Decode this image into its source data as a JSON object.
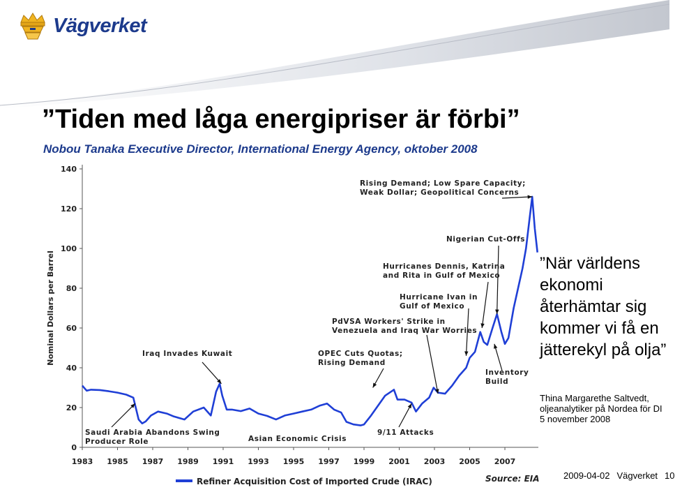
{
  "header": {
    "logo_text": "Vägverket",
    "logo_icon": "crown-shield-icon"
  },
  "slide": {
    "title": "”Tiden med låga energipriser är förbi”",
    "subtitle": "Nobou Tanaka Executive Director, International Energy Agency, oktober 2008",
    "quote": "”När världens ekonomi återhämtar sig kommer vi få en jätterekyl på olja”",
    "attribution": "Thina Margarethe Saltvedt, oljeanalytiker på Nordea för DI 5 november 2008"
  },
  "footer": {
    "date": "2009-04-02",
    "org": "Vägverket",
    "page": "10"
  },
  "colors": {
    "brand_blue": "#1c3a8c",
    "series_blue": "#1f3fd6",
    "header_gray": "#c9ccd3"
  },
  "chart_data": {
    "type": "line",
    "ylabel": "Nominal Dollars per Barrel",
    "ylim": [
      0,
      140
    ],
    "yticks": [
      0,
      20,
      40,
      60,
      80,
      100,
      120,
      140
    ],
    "xlim": [
      1983,
      2008.9
    ],
    "xticks": [
      1983,
      1985,
      1987,
      1989,
      1991,
      1993,
      1995,
      1997,
      1999,
      2001,
      2003,
      2005,
      2007
    ],
    "grid": false,
    "legend": "bottom",
    "source": "Source: EIA",
    "series": [
      {
        "name": "Refiner Acquisition Cost of Imported Crude (IRAC)",
        "color": "#1f3fd6",
        "x": [
          1983.0,
          1983.25,
          1983.5,
          1984.0,
          1984.5,
          1985.0,
          1985.5,
          1985.9,
          1986.2,
          1986.4,
          1986.6,
          1986.9,
          1987.3,
          1987.8,
          1988.2,
          1988.8,
          1989.3,
          1989.9,
          1990.3,
          1990.6,
          1990.8,
          1990.95,
          1991.2,
          1991.5,
          1992.0,
          1992.5,
          1993.0,
          1993.5,
          1994.0,
          1994.5,
          1995.0,
          1995.5,
          1996.0,
          1996.5,
          1996.9,
          1997.3,
          1997.7,
          1998.0,
          1998.4,
          1998.8,
          1999.0,
          1999.4,
          1999.8,
          2000.2,
          2000.7,
          2000.9,
          2001.3,
          2001.7,
          2001.95,
          2002.3,
          2002.7,
          2002.95,
          2003.2,
          2003.6,
          2004.0,
          2004.4,
          2004.8,
          2005.0,
          2005.3,
          2005.6,
          2005.8,
          2006.0,
          2006.3,
          2006.55,
          2006.8,
          2007.0,
          2007.2,
          2007.5,
          2007.8,
          2008.0,
          2008.2,
          2008.4,
          2008.55,
          2008.7,
          2008.85
        ],
        "y": [
          31,
          28.5,
          29,
          28.8,
          28.2,
          27.5,
          26.5,
          25,
          14,
          12,
          13,
          16,
          18,
          17,
          15.5,
          14,
          18,
          20,
          16,
          28,
          32,
          26,
          19,
          19,
          18.2,
          19.5,
          17,
          15.8,
          14,
          16,
          17,
          18,
          19,
          21,
          22,
          19,
          17.5,
          12.8,
          11.5,
          11,
          11.5,
          16,
          21,
          26,
          29,
          24,
          24,
          22.5,
          18,
          22,
          25,
          30,
          27.5,
          27,
          31,
          36,
          40,
          45,
          48,
          58,
          53,
          51.5,
          60,
          67,
          58,
          52,
          55,
          70,
          82,
          90,
          100,
          115,
          126,
          110,
          98
        ]
      }
    ],
    "annotations": [
      {
        "lines": [
          "Rising Demand; Low Spare Capacity;",
          "Weak Dollar; Geopolitical Concerns"
        ]
      },
      {
        "lines": [
          "Nigerian Cut-Offs"
        ]
      },
      {
        "lines": [
          "Hurricanes Dennis, Katrina",
          "and Rita in Gulf of Mexico"
        ]
      },
      {
        "lines": [
          "Hurricane Ivan in",
          "Gulf of Mexico"
        ]
      },
      {
        "lines": [
          "PdVSA Workers' Strike in",
          "Venezuela and Iraq War Worries"
        ]
      },
      {
        "lines": [
          "Iraq Invades Kuwait"
        ]
      },
      {
        "lines": [
          "OPEC Cuts Quotas;",
          "Rising Demand"
        ]
      },
      {
        "lines": [
          "Inventory",
          "Build"
        ]
      },
      {
        "lines": [
          "Saudi Arabia Abandons Swing",
          "Producer Role"
        ]
      },
      {
        "lines": [
          "Asian Economic Crisis"
        ]
      },
      {
        "lines": [
          "9/11 Attacks"
        ]
      }
    ]
  }
}
